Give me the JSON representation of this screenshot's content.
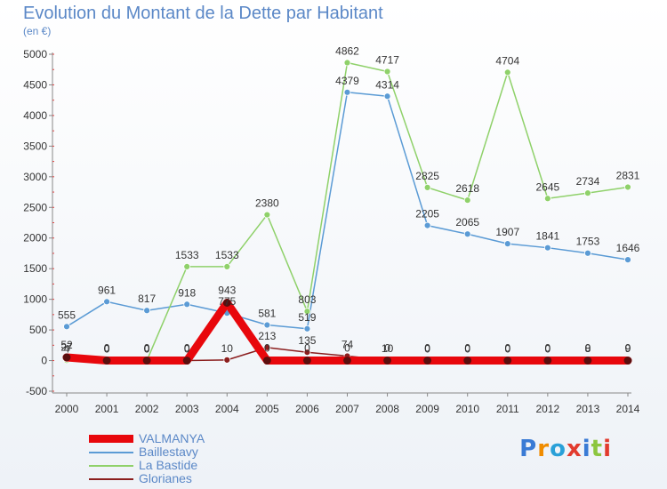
{
  "header": {
    "title": "Evolution du Montant de la Dette par Habitant",
    "subtitle": "(en €)"
  },
  "logo": {
    "text": "Proxiti",
    "colors": [
      "#3a7bd5",
      "#f08c00",
      "#2aa0d8",
      "#e23b2e",
      "#3a7bd5",
      "#8cc63f",
      "#e23b2e"
    ]
  },
  "chart_data": {
    "type": "line",
    "title": "Evolution du Montant de la Dette par Habitant",
    "subtitle": "(en €)",
    "x": [
      "2000",
      "2001",
      "2002",
      "2003",
      "2004",
      "2005",
      "2006",
      "2007",
      "2008",
      "2009",
      "2010",
      "2011",
      "2012",
      "2013",
      "2014"
    ],
    "ylim": [
      -500,
      5000
    ],
    "yticks": [
      -500,
      0,
      500,
      1000,
      1500,
      2000,
      2500,
      3000,
      3500,
      4000,
      4500,
      5000
    ],
    "grid": false,
    "legend_position": "bottom-left",
    "series": [
      {
        "name": "VALMANYA",
        "color": "#e8070c",
        "values": [
          52,
          0,
          0,
          0,
          943,
          0,
          0,
          0,
          0,
          0,
          0,
          0,
          0,
          0,
          0
        ],
        "labels": [
          "52",
          "0",
          "0",
          "0",
          "943",
          "0",
          "0",
          "0",
          "0",
          "0",
          "0",
          "0",
          "0",
          "0",
          "0"
        ]
      },
      {
        "name": "Baillestavy",
        "color": "#5b9bd5",
        "values": [
          555,
          961,
          817,
          918,
          775,
          581,
          519,
          4379,
          4314,
          2205,
          2065,
          1907,
          1841,
          1753,
          1646
        ],
        "labels": [
          "555",
          "961",
          "817",
          "918",
          "775",
          "581",
          "519",
          "4379",
          "4314",
          "2205",
          "2065",
          "1907",
          "1841",
          "1753",
          "1646"
        ]
      },
      {
        "name": "La Bastide",
        "color": "#8fd16a",
        "values": [
          4,
          0,
          0,
          1533,
          1533,
          2380,
          803,
          4862,
          4717,
          2825,
          2618,
          4704,
          2645,
          2734,
          2831
        ],
        "labels": [
          "4",
          "0",
          "0",
          "1533",
          "1533",
          "2380",
          "803",
          "4862",
          "4717",
          "2825",
          "2618",
          "4704",
          "2645",
          "2734",
          "2831"
        ]
      },
      {
        "name": "Glorianes",
        "color": "#8b1e1e",
        "values": [
          27,
          0,
          0,
          0,
          10,
          213,
          135,
          74,
          10,
          0,
          0,
          0,
          0,
          8,
          9
        ],
        "labels": [
          "27",
          "0",
          "0",
          "0",
          "10",
          "213",
          "135",
          "74",
          "10",
          "0",
          "0",
          "0",
          "0",
          "8",
          "9"
        ]
      }
    ]
  }
}
